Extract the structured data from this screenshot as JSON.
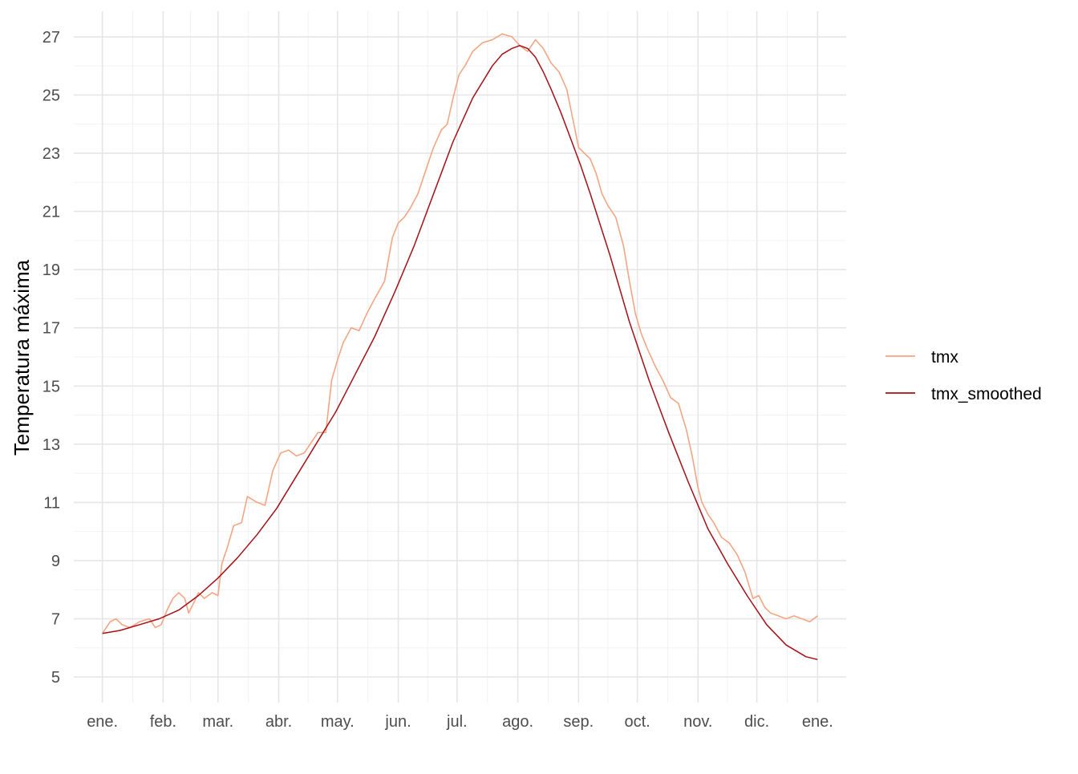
{
  "chart_data": {
    "type": "line",
    "title": "",
    "xlabel": "",
    "ylabel": "Temperatura máxima",
    "xlim": [
      1,
      366
    ],
    "ylim": [
      5,
      27
    ],
    "y_ticks": [
      5,
      7,
      9,
      11,
      13,
      15,
      17,
      19,
      21,
      23,
      25,
      27
    ],
    "x_ticks": [
      {
        "label": "ene.",
        "day": 1
      },
      {
        "label": "feb.",
        "day": 32
      },
      {
        "label": "mar.",
        "day": 60
      },
      {
        "label": "abr.",
        "day": 91
      },
      {
        "label": "may.",
        "day": 121
      },
      {
        "label": "jun.",
        "day": 152
      },
      {
        "label": "jul.",
        "day": 182
      },
      {
        "label": "ago.",
        "day": 213
      },
      {
        "label": "sep.",
        "day": 244
      },
      {
        "label": "oct.",
        "day": 274
      },
      {
        "label": "nov.",
        "day": 305
      },
      {
        "label": "dic.",
        "day": 335
      },
      {
        "label": "ene.",
        "day": 366
      }
    ],
    "grid": true,
    "legend_position": "right",
    "series": [
      {
        "name": "tmx",
        "color": "#f4a582",
        "x": [
          1,
          5,
          8,
          11,
          15,
          20,
          25,
          28,
          31,
          34,
          37,
          40,
          43,
          45,
          48,
          50,
          53,
          57,
          60,
          62,
          65,
          68,
          72,
          75,
          80,
          84,
          88,
          92,
          96,
          100,
          104,
          108,
          111,
          115,
          118,
          121,
          124,
          128,
          132,
          136,
          140,
          145,
          149,
          152,
          155,
          158,
          162,
          166,
          170,
          174,
          177,
          180,
          183,
          186,
          190,
          195,
          200,
          205,
          210,
          214,
          218,
          222,
          226,
          230,
          234,
          238,
          241,
          244,
          247,
          250,
          253,
          256,
          259,
          263,
          267,
          270,
          273,
          276,
          279,
          283,
          287,
          291,
          295,
          299,
          302,
          305,
          307,
          310,
          313,
          317,
          321,
          325,
          329,
          333,
          336,
          339,
          342,
          346,
          350,
          354,
          358,
          362,
          366
        ],
        "y": [
          6.5,
          6.9,
          7.0,
          6.8,
          6.7,
          6.9,
          7.0,
          6.7,
          6.8,
          7.3,
          7.7,
          7.9,
          7.7,
          7.2,
          7.6,
          7.9,
          7.7,
          7.9,
          7.8,
          8.9,
          9.5,
          10.2,
          10.3,
          11.2,
          11.0,
          10.9,
          12.1,
          12.7,
          12.8,
          12.6,
          12.7,
          13.1,
          13.4,
          13.4,
          15.2,
          15.9,
          16.5,
          17.0,
          16.9,
          17.5,
          18.0,
          18.6,
          20.1,
          20.6,
          20.8,
          21.1,
          21.6,
          22.4,
          23.2,
          23.8,
          24.0,
          24.9,
          25.7,
          26.0,
          26.5,
          26.8,
          26.9,
          27.1,
          27.0,
          26.7,
          26.5,
          26.9,
          26.6,
          26.1,
          25.8,
          25.2,
          24.2,
          23.2,
          23.0,
          22.8,
          22.3,
          21.6,
          21.2,
          20.8,
          19.8,
          18.6,
          17.5,
          16.8,
          16.3,
          15.7,
          15.2,
          14.6,
          14.4,
          13.5,
          12.6,
          11.5,
          11.0,
          10.6,
          10.3,
          9.8,
          9.6,
          9.2,
          8.6,
          7.7,
          7.8,
          7.4,
          7.2,
          7.1,
          7.0,
          7.1,
          7.0,
          6.9,
          7.1
        ]
      },
      {
        "name": "tmx_smoothed",
        "color": "#a50f15",
        "x": [
          1,
          10,
          20,
          30,
          40,
          50,
          60,
          70,
          80,
          90,
          100,
          110,
          120,
          130,
          140,
          150,
          160,
          170,
          180,
          190,
          200,
          205,
          210,
          214,
          218,
          222,
          226,
          230,
          235,
          240,
          245,
          250,
          260,
          270,
          280,
          290,
          300,
          310,
          320,
          330,
          340,
          350,
          360,
          366
        ],
        "y": [
          6.5,
          6.6,
          6.8,
          7.0,
          7.3,
          7.8,
          8.4,
          9.1,
          9.9,
          10.8,
          11.9,
          13.0,
          14.1,
          15.4,
          16.7,
          18.2,
          19.8,
          21.6,
          23.4,
          24.9,
          26.0,
          26.4,
          26.6,
          26.7,
          26.6,
          26.3,
          25.8,
          25.2,
          24.4,
          23.5,
          22.6,
          21.6,
          19.5,
          17.2,
          15.2,
          13.4,
          11.7,
          10.1,
          8.9,
          7.8,
          6.8,
          6.1,
          5.7,
          5.6
        ]
      }
    ]
  }
}
